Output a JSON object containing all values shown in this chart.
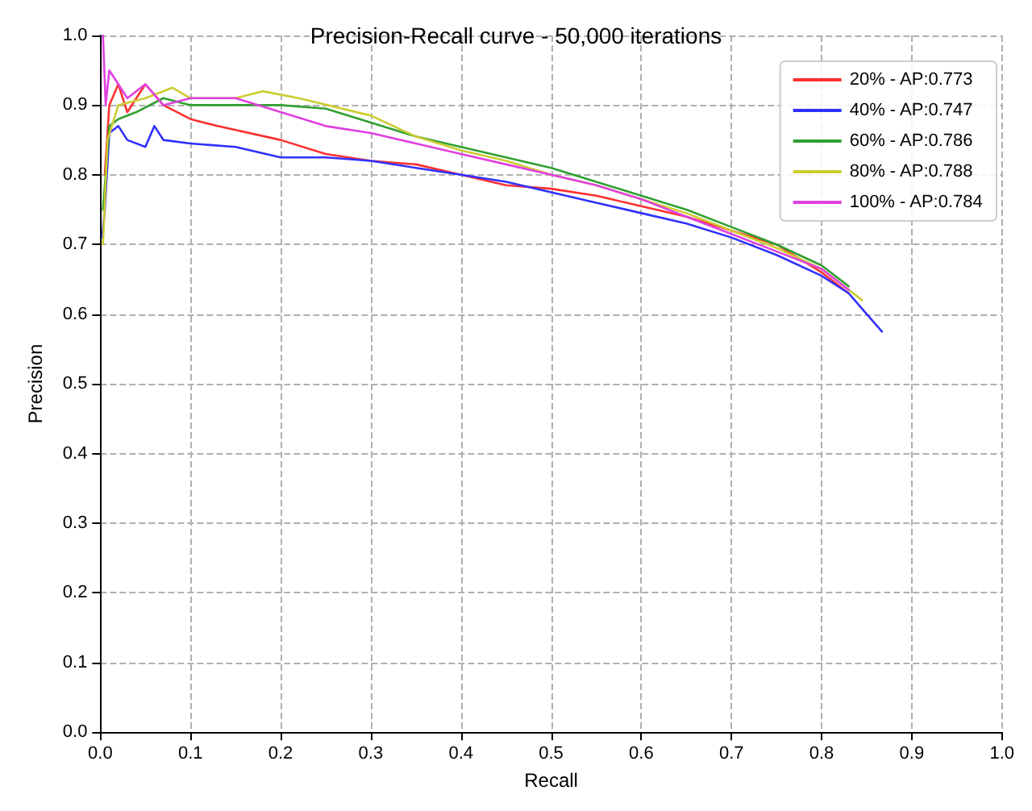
{
  "chart_data": {
    "type": "line",
    "title": "Precision-Recall curve - 50,000 iterations",
    "xlabel": "Recall",
    "ylabel": "Precision",
    "xlim": [
      0,
      1
    ],
    "ylim": [
      0,
      1
    ],
    "xticks": [
      {
        "value": 0,
        "label": "0.0"
      },
      {
        "value": 0.1,
        "label": "0.1"
      },
      {
        "value": 0.2,
        "label": "0.2"
      },
      {
        "value": 0.3,
        "label": "0.3"
      },
      {
        "value": 0.4,
        "label": "0.4"
      },
      {
        "value": 0.5,
        "label": "0.5"
      },
      {
        "value": 0.6,
        "label": "0.6"
      },
      {
        "value": 0.7,
        "label": "0.7"
      },
      {
        "value": 0.8,
        "label": "0.8"
      },
      {
        "value": 0.9,
        "label": "0.9"
      },
      {
        "value": 1,
        "label": "1.0"
      }
    ],
    "yticks": [
      {
        "value": 0,
        "label": "0.0"
      },
      {
        "value": 0.1,
        "label": "0.1"
      },
      {
        "value": 0.2,
        "label": "0.2"
      },
      {
        "value": 0.3,
        "label": "0.3"
      },
      {
        "value": 0.4,
        "label": "0.4"
      },
      {
        "value": 0.5,
        "label": "0.5"
      },
      {
        "value": 0.6,
        "label": "0.6"
      },
      {
        "value": 0.7,
        "label": "0.7"
      },
      {
        "value": 0.8,
        "label": "0.8"
      },
      {
        "value": 0.9,
        "label": "0.9"
      },
      {
        "value": 1,
        "label": "1.0"
      }
    ],
    "grid": true,
    "legend": "top right",
    "marker": "none",
    "line_style": "solid",
    "series": [
      {
        "name": "20% - AP:0.773",
        "color": "#ff3030",
        "x": [
          0.005,
          0.01,
          0.02,
          0.03,
          0.05,
          0.07,
          0.1,
          0.13,
          0.2,
          0.25,
          0.3,
          0.35,
          0.4,
          0.45,
          0.5,
          0.55,
          0.6,
          0.65,
          0.7,
          0.75,
          0.8,
          0.83
        ],
        "values": [
          0.8,
          0.9,
          0.93,
          0.89,
          0.93,
          0.9,
          0.88,
          0.87,
          0.85,
          0.83,
          0.82,
          0.815,
          0.8,
          0.785,
          0.78,
          0.77,
          0.755,
          0.74,
          0.72,
          0.7,
          0.66,
          0.63
        ]
      },
      {
        "name": "40% - AP:0.747",
        "color": "#3030ff",
        "x": [
          0.002,
          0.005,
          0.01,
          0.02,
          0.03,
          0.05,
          0.06,
          0.07,
          0.1,
          0.15,
          0.2,
          0.25,
          0.3,
          0.35,
          0.4,
          0.45,
          0.5,
          0.55,
          0.6,
          0.65,
          0.7,
          0.75,
          0.8,
          0.83,
          0.85,
          0.867
        ],
        "values": [
          0.71,
          0.75,
          0.86,
          0.87,
          0.85,
          0.84,
          0.87,
          0.85,
          0.845,
          0.84,
          0.825,
          0.825,
          0.82,
          0.81,
          0.8,
          0.79,
          0.775,
          0.76,
          0.745,
          0.73,
          0.71,
          0.685,
          0.655,
          0.63,
          0.6,
          0.575
        ]
      },
      {
        "name": "60% - AP:0.786",
        "color": "#30a030",
        "x": [
          0.003,
          0.01,
          0.02,
          0.04,
          0.07,
          0.1,
          0.15,
          0.2,
          0.25,
          0.3,
          0.35,
          0.4,
          0.45,
          0.5,
          0.55,
          0.6,
          0.65,
          0.7,
          0.75,
          0.8,
          0.83
        ],
        "values": [
          0.75,
          0.87,
          0.88,
          0.89,
          0.91,
          0.9,
          0.9,
          0.9,
          0.895,
          0.875,
          0.855,
          0.84,
          0.825,
          0.81,
          0.79,
          0.77,
          0.75,
          0.725,
          0.7,
          0.67,
          0.64
        ]
      },
      {
        "name": "80% - AP:0.788",
        "color": "#cccc30",
        "x": [
          0.003,
          0.008,
          0.02,
          0.05,
          0.08,
          0.1,
          0.15,
          0.18,
          0.22,
          0.3,
          0.35,
          0.4,
          0.45,
          0.5,
          0.55,
          0.6,
          0.65,
          0.7,
          0.75,
          0.8,
          0.845
        ],
        "values": [
          0.7,
          0.85,
          0.9,
          0.91,
          0.925,
          0.91,
          0.91,
          0.92,
          0.91,
          0.885,
          0.855,
          0.835,
          0.82,
          0.8,
          0.785,
          0.765,
          0.745,
          0.72,
          0.695,
          0.665,
          0.62
        ]
      },
      {
        "name": "100% - AP:0.784",
        "color": "#e040e0",
        "x": [
          0.003,
          0.006,
          0.01,
          0.02,
          0.03,
          0.05,
          0.07,
          0.1,
          0.15,
          0.2,
          0.25,
          0.3,
          0.35,
          0.4,
          0.45,
          0.5,
          0.55,
          0.6,
          0.65,
          0.7,
          0.75,
          0.8,
          0.83
        ],
        "values": [
          1.0,
          0.9,
          0.95,
          0.93,
          0.91,
          0.93,
          0.9,
          0.91,
          0.91,
          0.89,
          0.87,
          0.86,
          0.845,
          0.83,
          0.815,
          0.8,
          0.785,
          0.765,
          0.74,
          0.715,
          0.69,
          0.665,
          0.635
        ]
      }
    ]
  }
}
